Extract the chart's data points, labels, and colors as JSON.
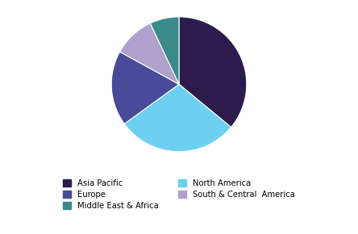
{
  "labels": [
    "Asia Pacific",
    "North America",
    "Europe",
    "South & Central  America",
    "Middle East & Africa"
  ],
  "values": [
    36,
    29,
    18,
    10,
    7
  ],
  "colors": [
    "#2d1b4e",
    "#6dd0f0",
    "#4a4a9a",
    "#b0a0cc",
    "#3a8a8a"
  ],
  "startangle": 90,
  "legend_col1": [
    "Asia Pacific",
    "Europe",
    "Middle East & Africa"
  ],
  "legend_col2": [
    "North America",
    "South & Central  America"
  ],
  "figsize": [
    4.44,
    2.91
  ],
  "dpi": 100
}
